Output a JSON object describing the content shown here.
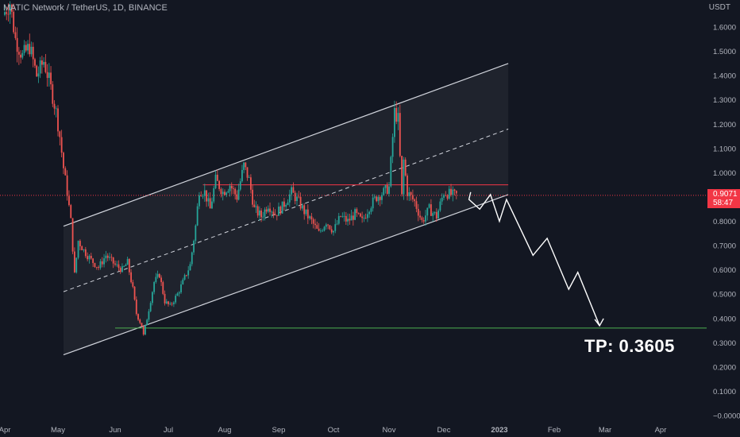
{
  "header": {
    "title": "MATIC Network / TetherUS, 1D, BINANCE"
  },
  "axis": {
    "unit_label": "USDT"
  },
  "current_price": {
    "value": "0.9071",
    "countdown": "58:47"
  },
  "annotation": {
    "tp_label": "TP: 0.3605"
  },
  "colors": {
    "background": "#131722",
    "up": "#26a69a",
    "down": "#ef5350",
    "channel": "#d1d4dc",
    "tp_line": "#4caf50",
    "resistance": "#f23645"
  },
  "chart_data": {
    "type": "candlestick",
    "x_axis": {
      "ticks": [
        "Apr",
        "May",
        "Jun",
        "Jul",
        "Aug",
        "Sep",
        "Oct",
        "Nov",
        "Dec",
        "2023",
        "Feb",
        "Mar",
        "Apr"
      ]
    },
    "y_axis": {
      "ticks": [
        "1.6000",
        "1.5000",
        "1.4000",
        "1.3000",
        "1.2000",
        "1.1000",
        "1.0000",
        "0.9000",
        "0.8000",
        "0.7000",
        "0.6000",
        "0.5000",
        "0.4000",
        "0.3000",
        "0.2000",
        "0.1000",
        "−0.0000"
      ],
      "ylim": [
        -0.01,
        1.72
      ],
      "scale": "linear"
    },
    "series_path": [
      [
        "2022-04-01",
        1.65
      ],
      [
        "2022-04-05",
        1.7
      ],
      [
        "2022-04-08",
        1.55
      ],
      [
        "2022-04-12",
        1.48
      ],
      [
        "2022-04-16",
        1.52
      ],
      [
        "2022-04-20",
        1.4
      ],
      [
        "2022-04-24",
        1.46
      ],
      [
        "2022-04-27",
        1.38
      ],
      [
        "2022-05-01",
        1.25
      ],
      [
        "2022-05-03",
        1.15
      ],
      [
        "2022-05-05",
        1.02
      ],
      [
        "2022-05-07",
        0.92
      ],
      [
        "2022-05-09",
        0.8
      ],
      [
        "2022-05-11",
        0.58
      ],
      [
        "2022-05-13",
        0.72
      ],
      [
        "2022-05-16",
        0.68
      ],
      [
        "2022-05-20",
        0.64
      ],
      [
        "2022-05-24",
        0.61
      ],
      [
        "2022-05-28",
        0.66
      ],
      [
        "2022-06-02",
        0.62
      ],
      [
        "2022-06-06",
        0.6
      ],
      [
        "2022-06-09",
        0.63
      ],
      [
        "2022-06-12",
        0.52
      ],
      [
        "2022-06-14",
        0.42
      ],
      [
        "2022-06-17",
        0.37
      ],
      [
        "2022-06-18",
        0.33
      ],
      [
        "2022-06-20",
        0.4
      ],
      [
        "2022-06-24",
        0.55
      ],
      [
        "2022-06-27",
        0.58
      ],
      [
        "2022-06-30",
        0.47
      ],
      [
        "2022-07-03",
        0.45
      ],
      [
        "2022-07-07",
        0.5
      ],
      [
        "2022-07-10",
        0.55
      ],
      [
        "2022-07-14",
        0.62
      ],
      [
        "2022-07-17",
        0.78
      ],
      [
        "2022-07-19",
        0.93
      ],
      [
        "2022-07-22",
        0.92
      ],
      [
        "2022-07-25",
        0.85
      ],
      [
        "2022-07-28",
        0.97
      ],
      [
        "2022-08-01",
        0.92
      ],
      [
        "2022-08-05",
        0.95
      ],
      [
        "2022-08-09",
        0.9
      ],
      [
        "2022-08-13",
        1.03
      ],
      [
        "2022-08-16",
        0.97
      ],
      [
        "2022-08-19",
        0.85
      ],
      [
        "2022-08-23",
        0.82
      ],
      [
        "2022-08-27",
        0.87
      ],
      [
        "2022-08-31",
        0.83
      ],
      [
        "2022-09-04",
        0.86
      ],
      [
        "2022-09-09",
        0.92
      ],
      [
        "2022-09-13",
        0.88
      ],
      [
        "2022-09-16",
        0.84
      ],
      [
        "2022-09-20",
        0.8
      ],
      [
        "2022-09-24",
        0.75
      ],
      [
        "2022-09-28",
        0.8
      ],
      [
        "2022-10-02",
        0.76
      ],
      [
        "2022-10-06",
        0.82
      ],
      [
        "2022-10-10",
        0.8
      ],
      [
        "2022-10-14",
        0.83
      ],
      [
        "2022-10-18",
        0.8
      ],
      [
        "2022-10-22",
        0.86
      ],
      [
        "2022-10-26",
        0.9
      ],
      [
        "2022-10-30",
        0.92
      ],
      [
        "2022-11-02",
        0.94
      ],
      [
        "2022-11-05",
        1.25
      ],
      [
        "2022-11-07",
        1.22
      ],
      [
        "2022-11-09",
        0.9
      ],
      [
        "2022-11-10",
        1.05
      ],
      [
        "2022-11-12",
        0.92
      ],
      [
        "2022-11-16",
        0.88
      ],
      [
        "2022-11-20",
        0.8
      ],
      [
        "2022-11-24",
        0.85
      ],
      [
        "2022-11-28",
        0.82
      ],
      [
        "2022-12-02",
        0.92
      ],
      [
        "2022-12-06",
        0.91
      ],
      [
        "2022-12-08",
        0.907
      ]
    ],
    "forecast_path": [
      [
        "2022-12-15",
        0.89
      ],
      [
        "2022-12-21",
        0.85
      ],
      [
        "2022-12-27",
        0.91
      ],
      [
        "2023-01-01",
        0.8
      ],
      [
        "2023-01-05",
        0.89
      ],
      [
        "2023-01-20",
        0.66
      ],
      [
        "2023-01-28",
        0.73
      ],
      [
        "2023-02-09",
        0.52
      ],
      [
        "2023-02-14",
        0.59
      ],
      [
        "2023-02-26",
        0.37
      ]
    ],
    "channel": {
      "x0": "2022-05-04",
      "x1": "2023-01-06",
      "lower": [
        0.25,
        0.91
      ],
      "mid": [
        0.51,
        1.18
      ],
      "upper": [
        0.78,
        1.45
      ]
    },
    "levels": {
      "resistance": 0.95,
      "current": 0.907,
      "take_profit": 0.3605
    }
  }
}
